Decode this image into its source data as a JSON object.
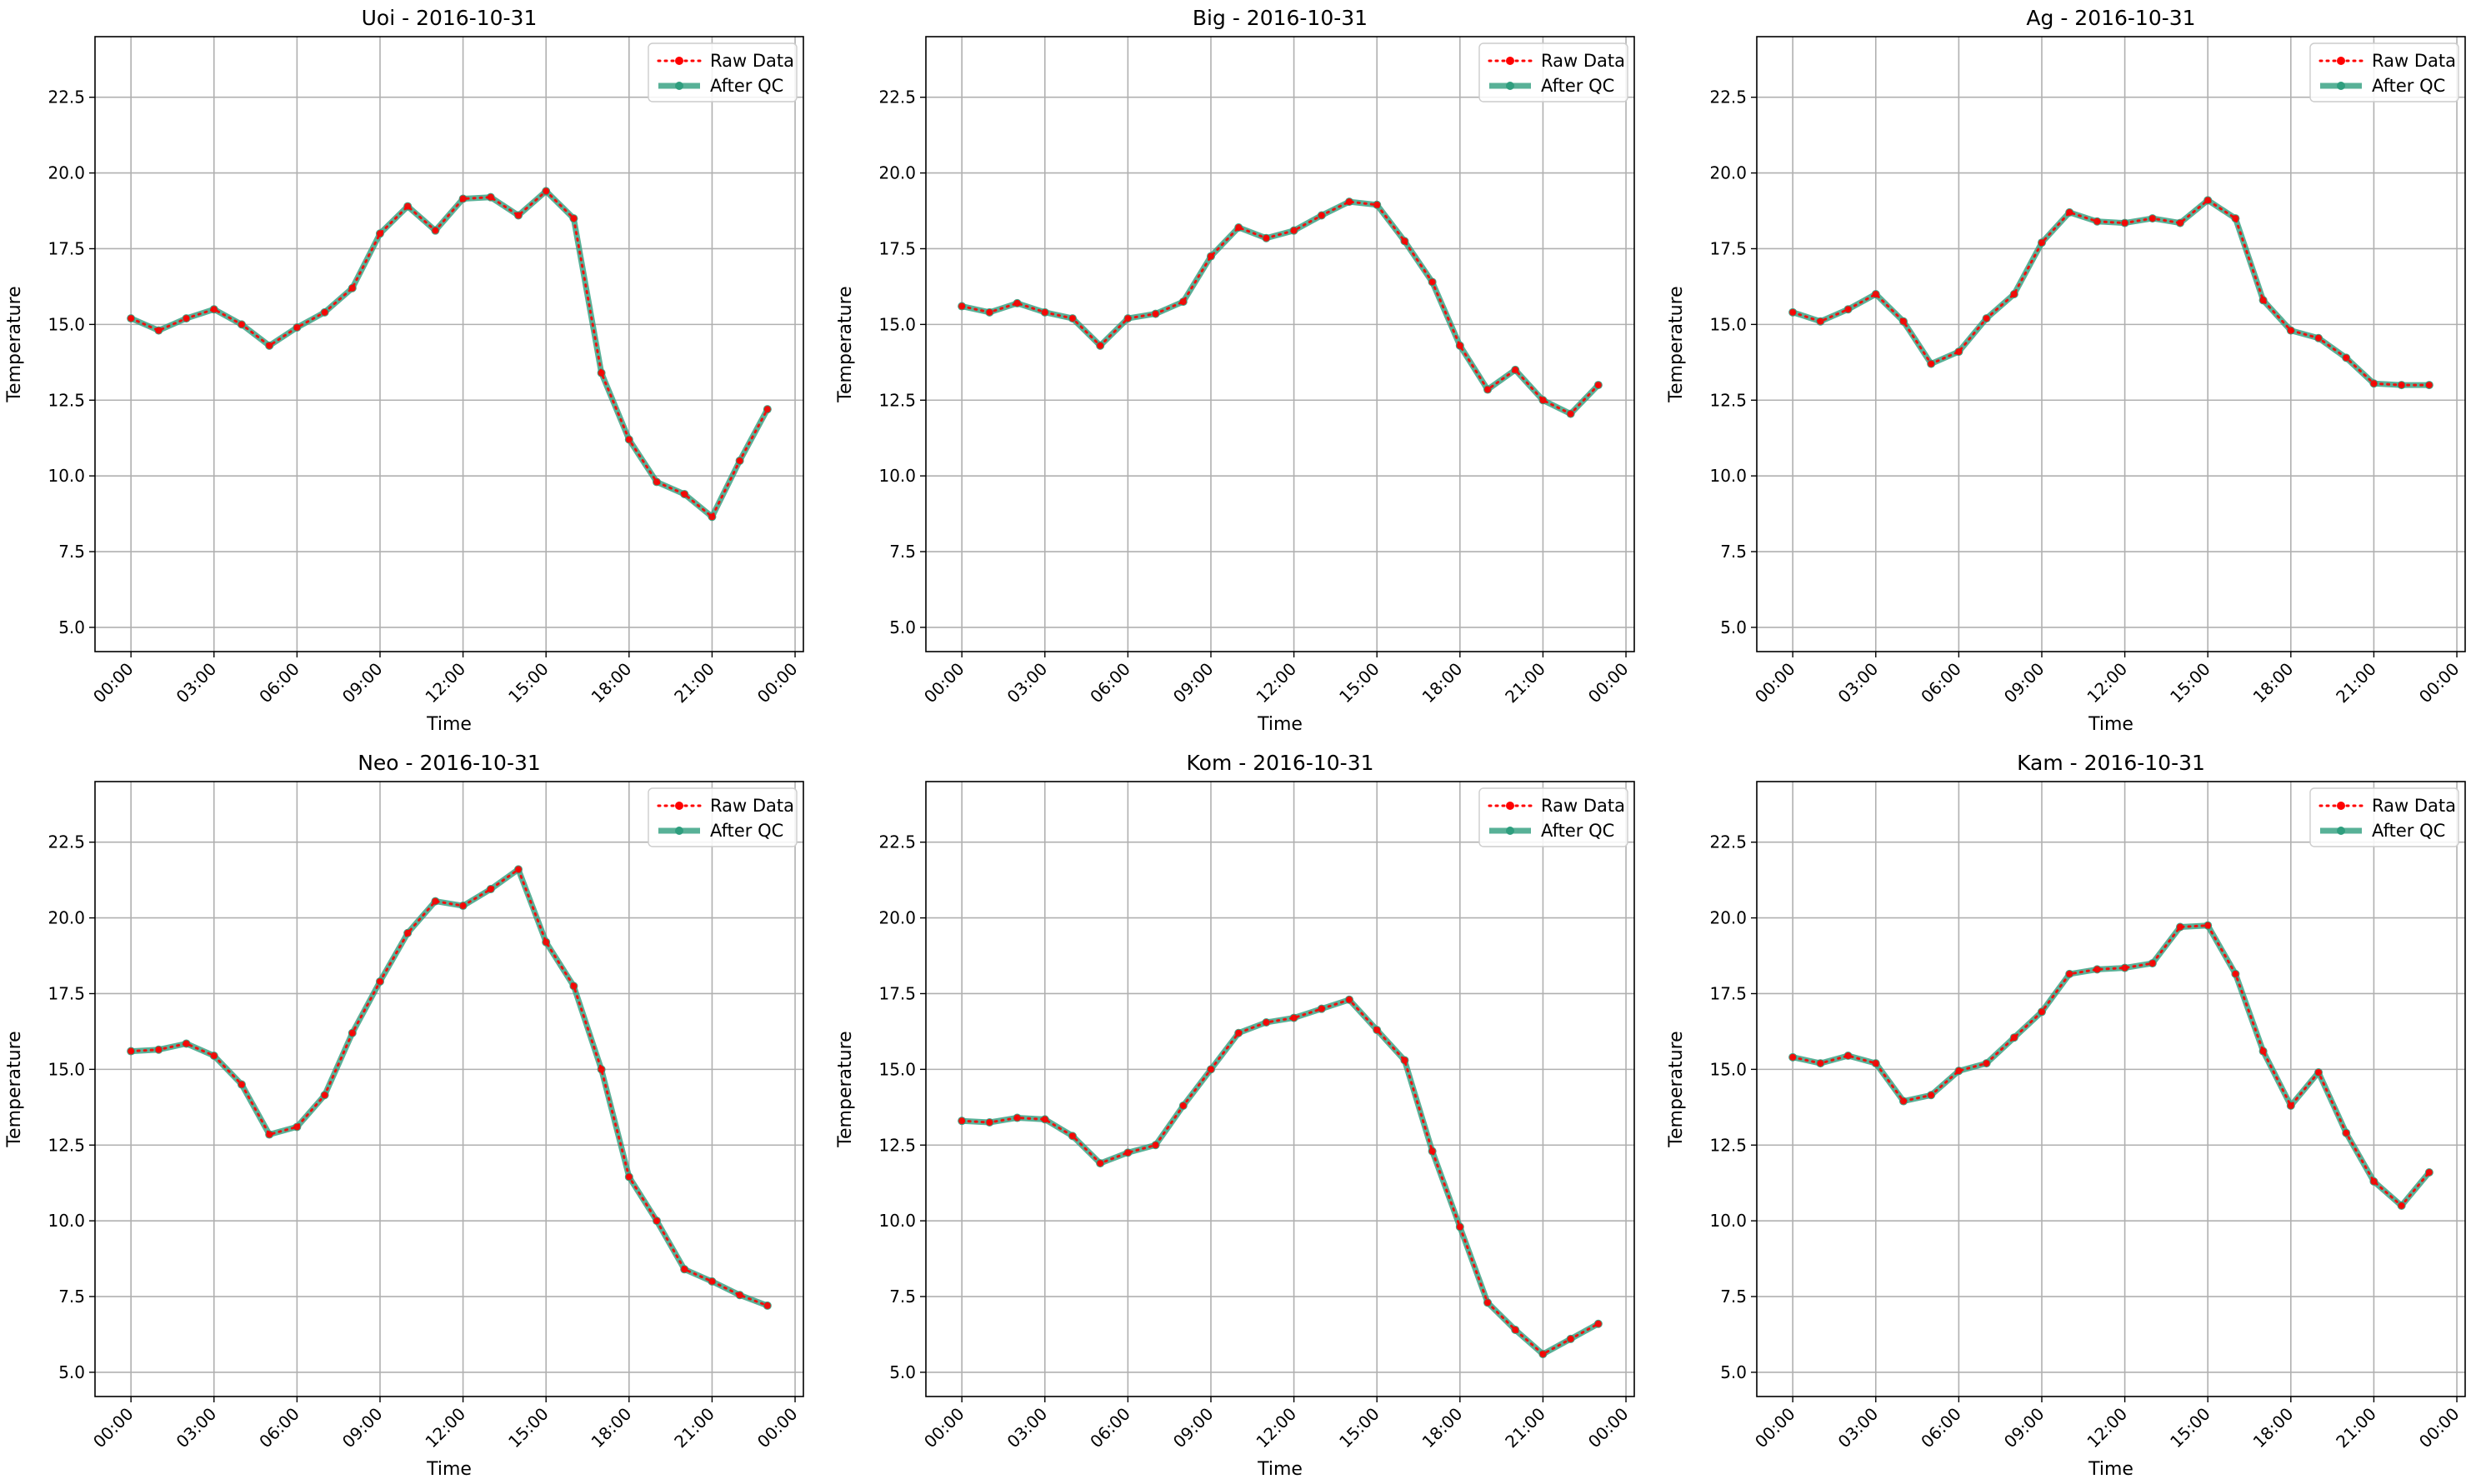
{
  "chart_data": [
    {
      "type": "line",
      "title": "Uoi - 2016-10-31",
      "xlabel": "Time",
      "ylabel": "Temperature",
      "xtick_labels": [
        "00:00",
        "03:00",
        "06:00",
        "09:00",
        "12:00",
        "15:00",
        "18:00",
        "21:00",
        "00:00"
      ],
      "ytick_labels": [
        "5.0",
        "7.5",
        "10.0",
        "12.5",
        "15.0",
        "17.5",
        "20.0",
        "22.5"
      ],
      "xlim": [
        -1.3,
        24.3
      ],
      "ylim": [
        4.2,
        24.5
      ],
      "grid": true,
      "legend_position": "top-right",
      "x": [
        0,
        1,
        2,
        3,
        4,
        5,
        6,
        7,
        8,
        9,
        10,
        11,
        12,
        13,
        14,
        15,
        16,
        17,
        18,
        19,
        20,
        21,
        22,
        23
      ],
      "series": [
        {
          "name": "Raw Data",
          "color": "#ff0000",
          "style": "dotted",
          "values": [
            15.2,
            14.8,
            15.2,
            15.5,
            15.0,
            14.3,
            14.9,
            15.4,
            16.2,
            18.0,
            18.9,
            18.1,
            19.15,
            19.2,
            18.6,
            19.4,
            18.5,
            13.4,
            11.2,
            9.8,
            9.4,
            8.65,
            10.5,
            12.2
          ]
        },
        {
          "name": "After QC",
          "color": "#2f9e7e",
          "style": "solid",
          "values": [
            15.2,
            14.8,
            15.2,
            15.5,
            15.0,
            14.3,
            14.9,
            15.4,
            16.2,
            18.0,
            18.9,
            18.1,
            19.15,
            19.2,
            18.6,
            19.4,
            18.5,
            13.4,
            11.2,
            9.8,
            9.4,
            8.65,
            10.5,
            12.2
          ]
        }
      ]
    },
    {
      "type": "line",
      "title": "Big - 2016-10-31",
      "xlabel": "Time",
      "ylabel": "Temperature",
      "xtick_labels": [
        "00:00",
        "03:00",
        "06:00",
        "09:00",
        "12:00",
        "15:00",
        "18:00",
        "21:00",
        "00:00"
      ],
      "ytick_labels": [
        "5.0",
        "7.5",
        "10.0",
        "12.5",
        "15.0",
        "17.5",
        "20.0",
        "22.5"
      ],
      "xlim": [
        -1.3,
        24.3
      ],
      "ylim": [
        4.2,
        24.5
      ],
      "grid": true,
      "legend_position": "top-right",
      "x": [
        0,
        1,
        2,
        3,
        4,
        5,
        6,
        7,
        8,
        9,
        10,
        11,
        12,
        13,
        14,
        15,
        16,
        17,
        18,
        19,
        20,
        21,
        22,
        23
      ],
      "series": [
        {
          "name": "Raw Data",
          "color": "#ff0000",
          "style": "dotted",
          "values": [
            15.6,
            15.4,
            15.7,
            15.4,
            15.2,
            14.3,
            15.2,
            15.35,
            15.75,
            17.25,
            18.2,
            17.85,
            18.1,
            18.6,
            19.05,
            18.95,
            17.75,
            16.4,
            14.3,
            12.85,
            13.5,
            12.5,
            12.05,
            13.0
          ]
        },
        {
          "name": "After QC",
          "color": "#2f9e7e",
          "style": "solid",
          "values": [
            15.6,
            15.4,
            15.7,
            15.4,
            15.2,
            14.3,
            15.2,
            15.35,
            15.75,
            17.25,
            18.2,
            17.85,
            18.1,
            18.6,
            19.05,
            18.95,
            17.75,
            16.4,
            14.3,
            12.85,
            13.5,
            12.5,
            12.05,
            13.0
          ]
        }
      ]
    },
    {
      "type": "line",
      "title": "Ag - 2016-10-31",
      "xlabel": "Time",
      "ylabel": "Temperature",
      "xtick_labels": [
        "00:00",
        "03:00",
        "06:00",
        "09:00",
        "12:00",
        "15:00",
        "18:00",
        "21:00",
        "00:00"
      ],
      "ytick_labels": [
        "5.0",
        "7.5",
        "10.0",
        "12.5",
        "15.0",
        "17.5",
        "20.0",
        "22.5"
      ],
      "xlim": [
        -1.3,
        24.3
      ],
      "ylim": [
        4.2,
        24.5
      ],
      "grid": true,
      "legend_position": "top-right",
      "x": [
        0,
        1,
        2,
        3,
        4,
        5,
        6,
        7,
        8,
        9,
        10,
        11,
        12,
        13,
        14,
        15,
        16,
        17,
        18,
        19,
        20,
        21,
        22,
        23
      ],
      "series": [
        {
          "name": "Raw Data",
          "color": "#ff0000",
          "style": "dotted",
          "values": [
            15.4,
            15.1,
            15.5,
            16.0,
            15.1,
            13.7,
            14.1,
            15.2,
            16.0,
            17.7,
            18.7,
            18.4,
            18.35,
            18.5,
            18.35,
            19.1,
            18.5,
            15.8,
            14.8,
            14.55,
            13.9,
            13.05,
            13.0,
            13.0
          ]
        },
        {
          "name": "After QC",
          "color": "#2f9e7e",
          "style": "solid",
          "values": [
            15.4,
            15.1,
            15.5,
            16.0,
            15.1,
            13.7,
            14.1,
            15.2,
            16.0,
            17.7,
            18.7,
            18.4,
            18.35,
            18.5,
            18.35,
            19.1,
            18.5,
            15.8,
            14.8,
            14.55,
            13.9,
            13.05,
            13.0,
            13.0
          ]
        }
      ]
    },
    {
      "type": "line",
      "title": "Neo - 2016-10-31",
      "xlabel": "Time",
      "ylabel": "Temperature",
      "xtick_labels": [
        "00:00",
        "03:00",
        "06:00",
        "09:00",
        "12:00",
        "15:00",
        "18:00",
        "21:00",
        "00:00"
      ],
      "ytick_labels": [
        "5.0",
        "7.5",
        "10.0",
        "12.5",
        "15.0",
        "17.5",
        "20.0",
        "22.5"
      ],
      "xlim": [
        -1.3,
        24.3
      ],
      "ylim": [
        4.2,
        24.5
      ],
      "grid": true,
      "legend_position": "top-right",
      "x": [
        0,
        1,
        2,
        3,
        4,
        5,
        6,
        7,
        8,
        9,
        10,
        11,
        12,
        13,
        14,
        15,
        16,
        17,
        18,
        19,
        20,
        21,
        22,
        23
      ],
      "series": [
        {
          "name": "Raw Data",
          "color": "#ff0000",
          "style": "dotted",
          "values": [
            15.6,
            15.65,
            15.85,
            15.45,
            14.5,
            12.85,
            13.1,
            14.15,
            16.2,
            17.9,
            19.5,
            20.55,
            20.4,
            20.95,
            21.6,
            19.2,
            17.75,
            15.0,
            11.45,
            10.0,
            8.4,
            8.0,
            7.55,
            7.2
          ]
        },
        {
          "name": "After QC",
          "color": "#2f9e7e",
          "style": "solid",
          "values": [
            15.6,
            15.65,
            15.85,
            15.45,
            14.5,
            12.85,
            13.1,
            14.15,
            16.2,
            17.9,
            19.5,
            20.55,
            20.4,
            20.95,
            21.6,
            19.2,
            17.75,
            15.0,
            11.45,
            10.0,
            8.4,
            8.0,
            7.55,
            7.2
          ]
        }
      ]
    },
    {
      "type": "line",
      "title": "Kom - 2016-10-31",
      "xlabel": "Time",
      "ylabel": "Temperature",
      "xtick_labels": [
        "00:00",
        "03:00",
        "06:00",
        "09:00",
        "12:00",
        "15:00",
        "18:00",
        "21:00",
        "00:00"
      ],
      "ytick_labels": [
        "5.0",
        "7.5",
        "10.0",
        "12.5",
        "15.0",
        "17.5",
        "20.0",
        "22.5"
      ],
      "xlim": [
        -1.3,
        24.3
      ],
      "ylim": [
        4.2,
        24.5
      ],
      "grid": true,
      "legend_position": "top-right",
      "x": [
        0,
        1,
        2,
        3,
        4,
        5,
        6,
        7,
        8,
        9,
        10,
        11,
        12,
        13,
        14,
        15,
        16,
        17,
        18,
        19,
        20,
        21,
        22,
        23
      ],
      "series": [
        {
          "name": "Raw Data",
          "color": "#ff0000",
          "style": "dotted",
          "values": [
            13.3,
            13.25,
            13.4,
            13.35,
            12.8,
            11.9,
            12.25,
            12.5,
            13.8,
            15.0,
            16.2,
            16.55,
            16.7,
            17.0,
            17.3,
            16.3,
            15.3,
            12.3,
            9.8,
            7.3,
            6.4,
            5.6,
            6.1,
            6.6
          ]
        },
        {
          "name": "After QC",
          "color": "#2f9e7e",
          "style": "solid",
          "values": [
            13.3,
            13.25,
            13.4,
            13.35,
            12.8,
            11.9,
            12.25,
            12.5,
            13.8,
            15.0,
            16.2,
            16.55,
            16.7,
            17.0,
            17.3,
            16.3,
            15.3,
            12.3,
            9.8,
            7.3,
            6.4,
            5.6,
            6.1,
            6.6
          ]
        }
      ]
    },
    {
      "type": "line",
      "title": "Kam - 2016-10-31",
      "xlabel": "Time",
      "ylabel": "Temperature",
      "xtick_labels": [
        "00:00",
        "03:00",
        "06:00",
        "09:00",
        "12:00",
        "15:00",
        "18:00",
        "21:00",
        "00:00"
      ],
      "ytick_labels": [
        "5.0",
        "7.5",
        "10.0",
        "12.5",
        "15.0",
        "17.5",
        "20.0",
        "22.5"
      ],
      "xlim": [
        -1.3,
        24.3
      ],
      "ylim": [
        4.2,
        24.5
      ],
      "grid": true,
      "legend_position": "top-right",
      "x": [
        0,
        1,
        2,
        3,
        4,
        5,
        6,
        7,
        8,
        9,
        10,
        11,
        12,
        13,
        14,
        15,
        16,
        17,
        18,
        19,
        20,
        21,
        22,
        23
      ],
      "series": [
        {
          "name": "Raw Data",
          "color": "#ff0000",
          "style": "dotted",
          "values": [
            15.4,
            15.2,
            15.45,
            15.2,
            13.95,
            14.15,
            14.95,
            15.2,
            16.05,
            16.9,
            18.15,
            18.3,
            18.35,
            18.5,
            19.7,
            19.75,
            18.15,
            15.6,
            13.8,
            14.9,
            12.9,
            11.3,
            10.5,
            11.6
          ]
        },
        {
          "name": "After QC",
          "color": "#2f9e7e",
          "style": "solid",
          "values": [
            15.4,
            15.2,
            15.45,
            15.2,
            13.95,
            14.15,
            14.95,
            15.2,
            16.05,
            16.9,
            18.15,
            18.3,
            18.35,
            18.5,
            19.7,
            19.75,
            18.15,
            15.6,
            13.8,
            14.9,
            12.9,
            11.3,
            10.5,
            11.6
          ]
        }
      ]
    }
  ]
}
